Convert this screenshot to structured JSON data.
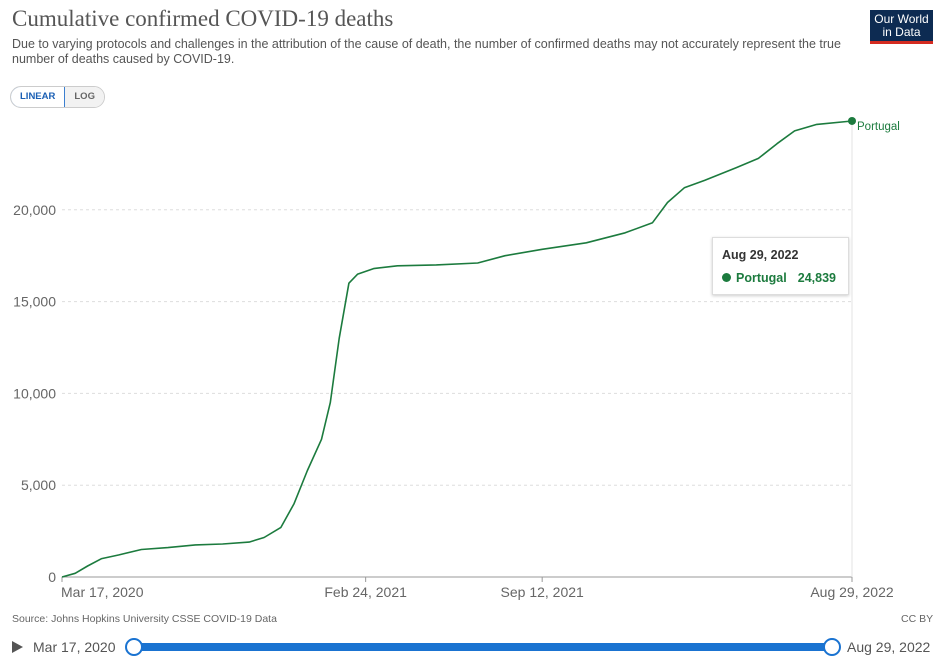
{
  "header": {
    "title": "Cumulative confirmed COVID-19 deaths",
    "subtitle": "Due to varying protocols and challenges in the attribution of the cause of death, the number of confirmed deaths may not accurately represent the true number of deaths caused by COVID-19.",
    "logo_line1": "Our World",
    "logo_line2": "in Data"
  },
  "controls": {
    "linear_label": "LINEAR",
    "log_label": "LOG",
    "selected": "LINEAR"
  },
  "tooltip": {
    "date": "Aug 29, 2022",
    "series": "Portugal",
    "value": "24,839"
  },
  "footer": {
    "source": "Source: Johns Hopkins University CSSE COVID-19 Data",
    "license": "CC BY"
  },
  "timeline": {
    "start": "Mar 17, 2020",
    "end": "Aug 29, 2022"
  },
  "colors": {
    "series": "#1c7b3e",
    "grid": "#dddddd",
    "axis": "#999999",
    "slider": "#1a73d1"
  },
  "chart_data": {
    "type": "line",
    "title": "Cumulative confirmed COVID-19 deaths",
    "xlabel": "",
    "ylabel": "",
    "x_tick_labels": [
      "Mar 17, 2020",
      "Feb 24, 2021",
      "Sep 12, 2021",
      "Aug 29, 2022"
    ],
    "y_tick_labels": [
      "0",
      "5,000",
      "10,000",
      "15,000",
      "20,000"
    ],
    "ylim": [
      0,
      25000
    ],
    "xlim": [
      "2020-03-17",
      "2022-08-29"
    ],
    "grid": "horizontal dashed",
    "legend": "end-of-line label",
    "series": [
      {
        "name": "Portugal",
        "points": [
          [
            "2020-03-17",
            0
          ],
          [
            "2020-04-01",
            200
          ],
          [
            "2020-04-15",
            600
          ],
          [
            "2020-05-01",
            1000
          ],
          [
            "2020-05-20",
            1200
          ],
          [
            "2020-06-15",
            1500
          ],
          [
            "2020-07-15",
            1600
          ],
          [
            "2020-08-15",
            1750
          ],
          [
            "2020-09-15",
            1800
          ],
          [
            "2020-10-15",
            1900
          ],
          [
            "2020-11-01",
            2150
          ],
          [
            "2020-11-20",
            2700
          ],
          [
            "2020-12-05",
            4000
          ],
          [
            "2020-12-20",
            5800
          ],
          [
            "2021-01-05",
            7500
          ],
          [
            "2021-01-15",
            9500
          ],
          [
            "2021-01-25",
            13000
          ],
          [
            "2021-02-05",
            16000
          ],
          [
            "2021-02-15",
            16500
          ],
          [
            "2021-03-05",
            16800
          ],
          [
            "2021-04-01",
            16950
          ],
          [
            "2021-05-15",
            17000
          ],
          [
            "2021-07-01",
            17100
          ],
          [
            "2021-08-01",
            17500
          ],
          [
            "2021-09-12",
            17850
          ],
          [
            "2021-11-01",
            18200
          ],
          [
            "2021-12-15",
            18750
          ],
          [
            "2022-01-15",
            19300
          ],
          [
            "2022-02-01",
            20400
          ],
          [
            "2022-02-20",
            21200
          ],
          [
            "2022-03-15",
            21600
          ],
          [
            "2022-04-20",
            22300
          ],
          [
            "2022-05-15",
            22800
          ],
          [
            "2022-06-05",
            23600
          ],
          [
            "2022-06-25",
            24300
          ],
          [
            "2022-07-20",
            24650
          ],
          [
            "2022-08-29",
            24839
          ]
        ]
      }
    ]
  }
}
